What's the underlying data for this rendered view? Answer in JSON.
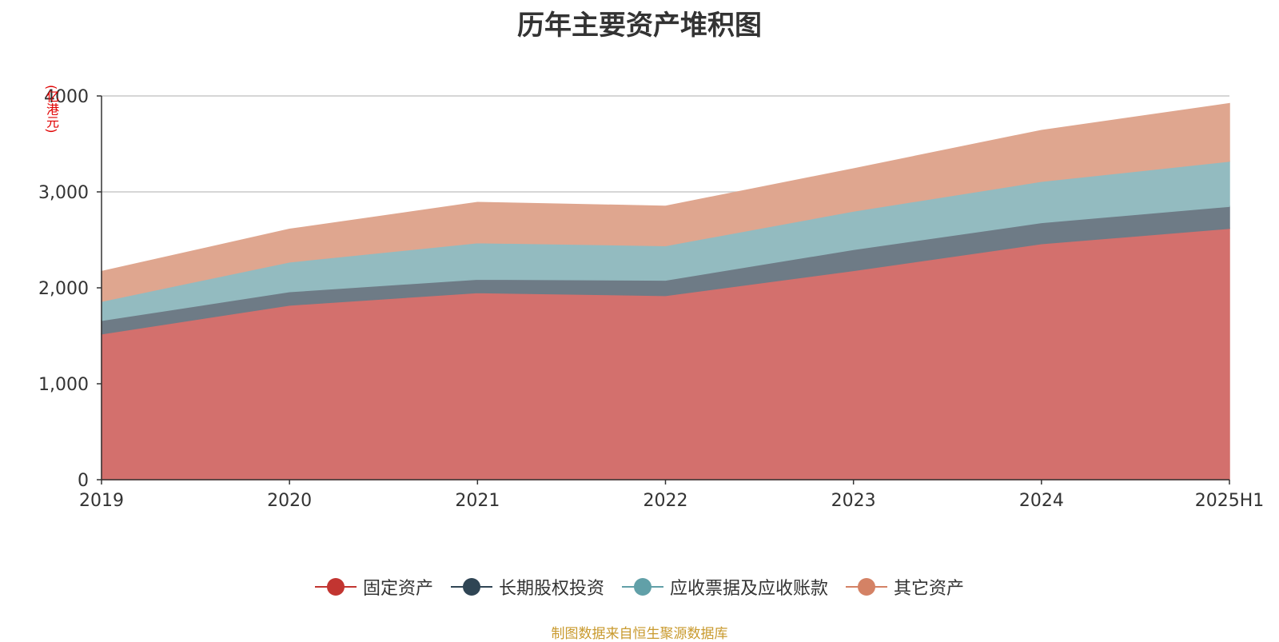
{
  "chart_data": {
    "type": "area",
    "stacked": true,
    "title": "历年主要资产堆积图",
    "ylabel": "(亿港元)",
    "x": [
      "2019",
      "2020",
      "2021",
      "2022",
      "2023",
      "2024",
      "2025H1"
    ],
    "ylim": [
      0,
      4000
    ],
    "yticks": [
      0,
      1000,
      2000,
      3000,
      4000
    ],
    "ytick_labels": [
      "0",
      "1,000",
      "2,000",
      "3,000",
      "4000"
    ],
    "grid": true,
    "legend_position": "bottom",
    "series": [
      {
        "name": "固定资产",
        "color": "#c23531",
        "fill": "#d3706d",
        "values": [
          1520,
          1820,
          1950,
          1920,
          2180,
          2460,
          2620
        ]
      },
      {
        "name": "长期股权投资",
        "color": "#2f4554",
        "fill": "#6e7b86",
        "values": [
          140,
          140,
          140,
          160,
          220,
          220,
          230
        ]
      },
      {
        "name": "应收票据及应收账款",
        "color": "#61a0a8",
        "fill": "#93bbc0",
        "values": [
          200,
          310,
          380,
          360,
          400,
          430,
          470
        ]
      },
      {
        "name": "其它资产",
        "color": "#d48265",
        "fill": "#dfa68f",
        "values": [
          310,
          340,
          420,
          410,
          440,
          530,
          600
        ]
      }
    ]
  },
  "source": "制图数据来自恒生聚源数据库"
}
